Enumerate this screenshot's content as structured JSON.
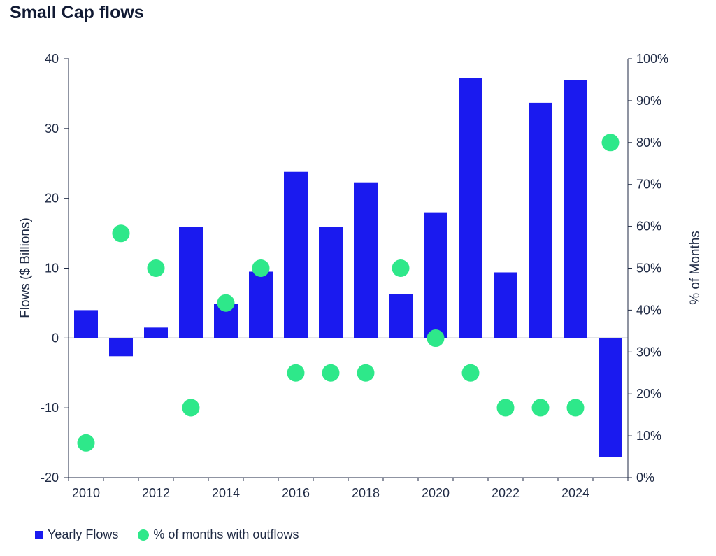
{
  "chart_data": {
    "type": "bar",
    "title": "Small Cap flows",
    "xlabel": "",
    "ylabel": "Flows ($ Billions)",
    "y2label": "% of Months",
    "ylim": [
      -20,
      40
    ],
    "y2lim": [
      0,
      100
    ],
    "yticks": [
      "40",
      "30",
      "20",
      "10",
      "0",
      "-10",
      "-20"
    ],
    "y2ticks": [
      "100%",
      "90%",
      "80%",
      "70%",
      "60%",
      "50%",
      "40%",
      "30%",
      "20%",
      "10%",
      "0%"
    ],
    "categories": [
      "2010",
      "2011",
      "2012",
      "2013",
      "2014",
      "2015",
      "2016",
      "2017",
      "2018",
      "2019",
      "2020",
      "2021",
      "2022",
      "2023",
      "2024",
      "2025"
    ],
    "xtick_labels": [
      "2010",
      "2012",
      "2014",
      "2016",
      "2018",
      "2020",
      "2022",
      "2024"
    ],
    "grid": false,
    "legend_position": "bottom-left",
    "series": [
      {
        "name": "Yearly Flows",
        "type": "bar",
        "axis": "left",
        "color": "#1a1aef",
        "values": [
          4.0,
          -2.6,
          1.5,
          15.9,
          4.9,
          9.5,
          23.8,
          15.9,
          22.3,
          6.3,
          18.0,
          37.2,
          9.4,
          33.7,
          36.9,
          -17.0
        ]
      },
      {
        "name": "% of months with outflows",
        "type": "scatter",
        "axis": "right",
        "color": "#2ee88a",
        "values": [
          8.3,
          58.3,
          50.0,
          16.7,
          41.7,
          50.0,
          25.0,
          25.0,
          25.0,
          50.0,
          33.3,
          25.0,
          16.7,
          16.7,
          16.7,
          80.0
        ]
      }
    ]
  }
}
